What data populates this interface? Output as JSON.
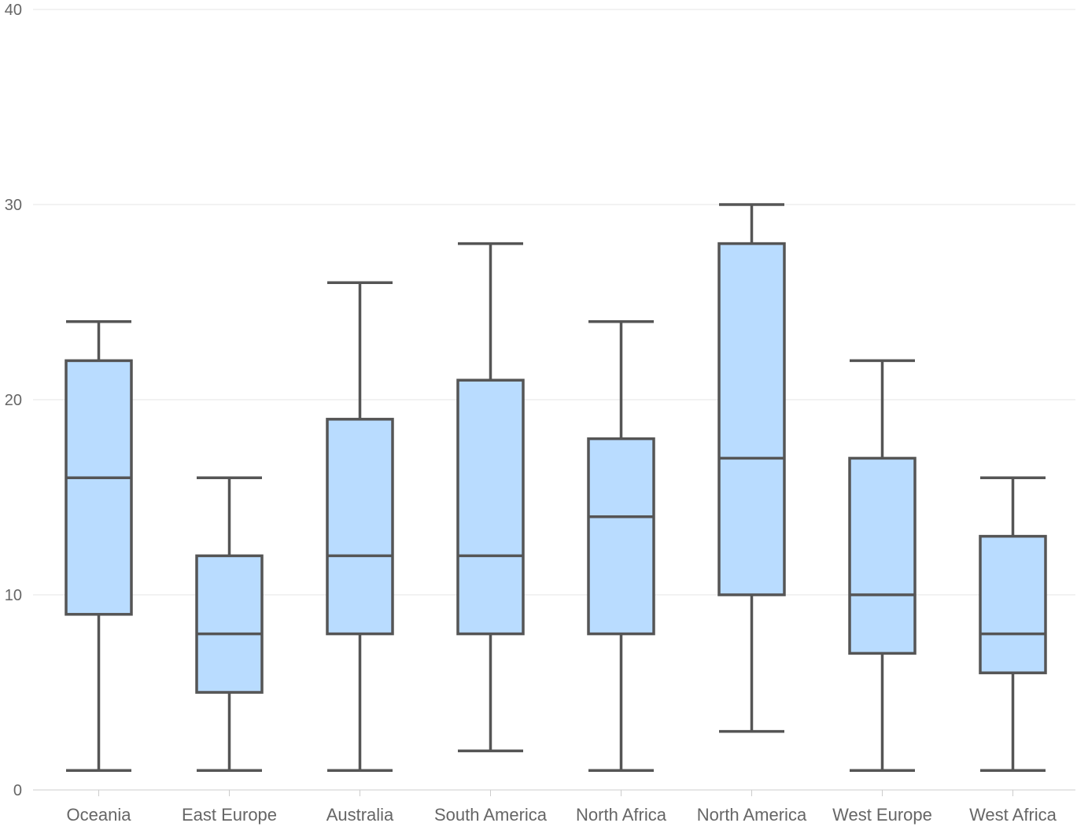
{
  "chart_data": {
    "type": "boxplot",
    "title": "",
    "xlabel": "",
    "ylabel": "",
    "ylim": [
      0,
      40
    ],
    "yticks": [
      0,
      10,
      20,
      30,
      40
    ],
    "grid": true,
    "legend": "none",
    "colors": {
      "box_fill": "#b9dcff",
      "box_stroke": "#555555"
    },
    "categories": [
      "Oceania",
      "East Europe",
      "Australia",
      "South America",
      "North Africa",
      "North America",
      "West Europe",
      "West Africa"
    ],
    "series": [
      {
        "category": "Oceania",
        "min": 1,
        "q1": 9,
        "median": 16,
        "q3": 22,
        "max": 24
      },
      {
        "category": "East Europe",
        "min": 1,
        "q1": 5,
        "median": 8,
        "q3": 12,
        "max": 16
      },
      {
        "category": "Australia",
        "min": 1,
        "q1": 8,
        "median": 12,
        "q3": 19,
        "max": 26
      },
      {
        "category": "South America",
        "min": 2,
        "q1": 8,
        "median": 12,
        "q3": 21,
        "max": 28
      },
      {
        "category": "North Africa",
        "min": 1,
        "q1": 8,
        "median": 14,
        "q3": 18,
        "max": 24
      },
      {
        "category": "North America",
        "min": 3,
        "q1": 10,
        "median": 17,
        "q3": 28,
        "max": 30
      },
      {
        "category": "West Europe",
        "min": 1,
        "q1": 7,
        "median": 10,
        "q3": 17,
        "max": 22
      },
      {
        "category": "West Africa",
        "min": 1,
        "q1": 6,
        "median": 8,
        "q3": 13,
        "max": 16
      }
    ]
  }
}
